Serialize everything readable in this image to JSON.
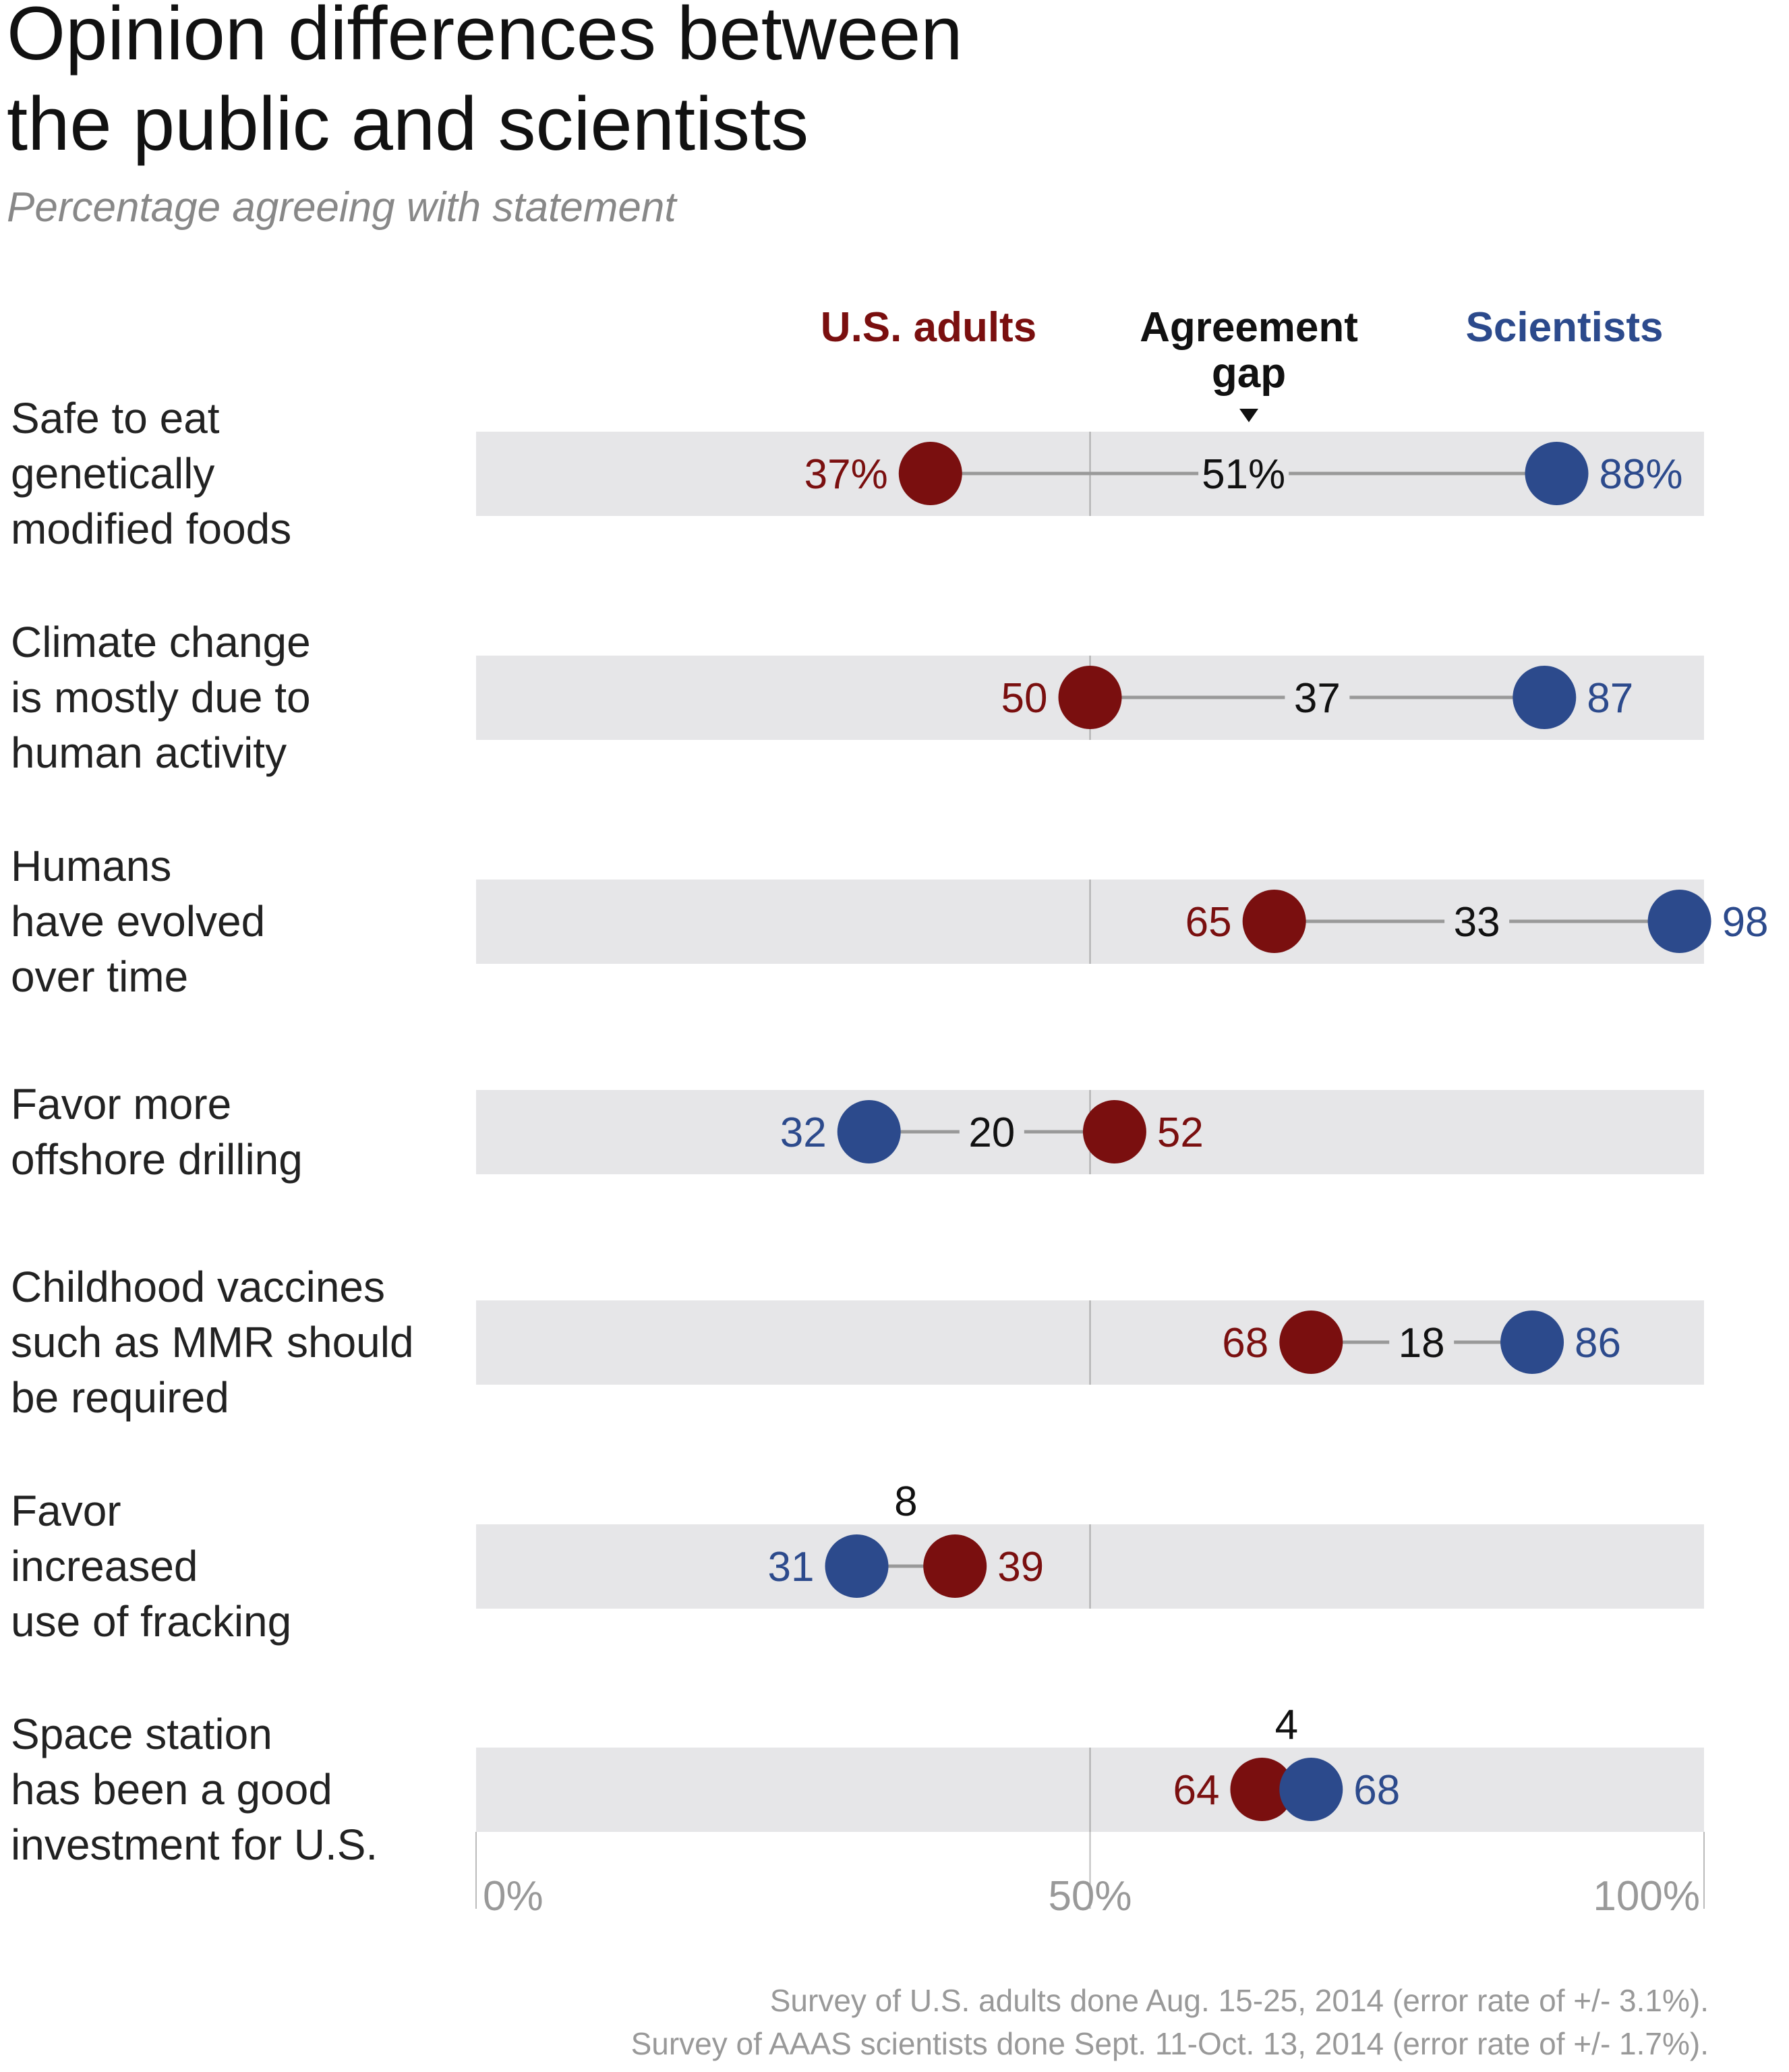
{
  "chart_data": {
    "type": "dot",
    "title": "Opinion differences between the public and scientists",
    "title_lines": [
      "Opinion differences between",
      "the public and scientists"
    ],
    "subtitle": "Percentage agreeing with statement",
    "legend": {
      "adults": "U.S. adults",
      "gap_line1": "Agreement",
      "gap_line2": "gap",
      "scientists": "Scientists"
    },
    "colors": {
      "adults": "#7a0f0f",
      "scientists": "#2c4a8c",
      "band": "#e6e6e8",
      "connector": "#999999"
    },
    "xlim": [
      0,
      100
    ],
    "ticks": [
      "0%",
      "50%",
      "100%"
    ],
    "rows": [
      {
        "label_lines": [
          "Safe to eat",
          "genetically",
          "modified foods"
        ],
        "adults": 37,
        "scientists": 88,
        "gap": 51,
        "adults_label": "37%",
        "scientists_label": "88%",
        "gap_label": "51%"
      },
      {
        "label_lines": [
          "Climate change",
          "is mostly due to",
          "human activity"
        ],
        "adults": 50,
        "scientists": 87,
        "gap": 37,
        "adults_label": "50",
        "scientists_label": "87",
        "gap_label": "37"
      },
      {
        "label_lines": [
          "Humans",
          "have evolved",
          "over time"
        ],
        "adults": 65,
        "scientists": 98,
        "gap": 33,
        "adults_label": "65",
        "scientists_label": "98",
        "gap_label": "33"
      },
      {
        "label_lines": [
          "Favor more",
          "offshore drilling"
        ],
        "adults": 52,
        "scientists": 32,
        "gap": 20,
        "adults_label": "52",
        "scientists_label": "32",
        "gap_label": "20"
      },
      {
        "label_lines": [
          "Childhood vaccines",
          "such as MMR should",
          "be required"
        ],
        "adults": 68,
        "scientists": 86,
        "gap": 18,
        "adults_label": "68",
        "scientists_label": "86",
        "gap_label": "18"
      },
      {
        "label_lines": [
          "Favor",
          "increased",
          "use of fracking"
        ],
        "adults": 39,
        "scientists": 31,
        "gap": 8,
        "adults_label": "39",
        "scientists_label": "31",
        "gap_label": "8"
      },
      {
        "label_lines": [
          "Space station",
          "has been a good",
          "investment for U.S."
        ],
        "adults": 64,
        "scientists": 68,
        "gap": 4,
        "adults_label": "64",
        "scientists_label": "68",
        "gap_label": "4"
      }
    ],
    "footnotes": [
      "Survey of U.S. adults done Aug. 15-25, 2014 (error rate of +/- 3.1%).",
      "Survey of AAAS scientists done Sept. 11-Oct. 13, 2014 (error rate of +/- 1.7%)."
    ]
  }
}
